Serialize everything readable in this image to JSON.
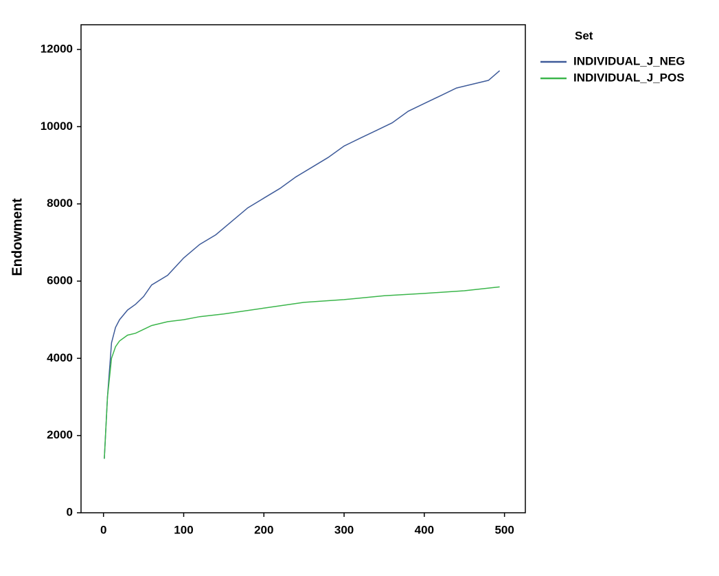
{
  "chart_data": {
    "type": "line",
    "y_label": "Endowment",
    "legend_title": "Set",
    "legend_position": "right",
    "xlim": [
      -28,
      526
    ],
    "ylim": [
      0,
      12640
    ],
    "xticks": [
      0,
      100,
      200,
      300,
      400,
      500
    ],
    "yticks": [
      0,
      2000,
      4000,
      6000,
      8000,
      10000,
      12000
    ],
    "series": [
      {
        "name": "INDIVIDUAL_J_NEG",
        "color": "#3d5a99",
        "x": [
          1,
          5,
          10,
          15,
          20,
          30,
          40,
          50,
          60,
          80,
          100,
          120,
          140,
          160,
          180,
          200,
          220,
          240,
          260,
          280,
          300,
          320,
          340,
          360,
          380,
          400,
          420,
          440,
          460,
          480,
          494
        ],
        "values": [
          1400,
          3000,
          4400,
          4800,
          5000,
          5250,
          5400,
          5600,
          5900,
          6150,
          6600,
          6950,
          7200,
          7550,
          7900,
          8150,
          8400,
          8700,
          8950,
          9200,
          9500,
          9700,
          9900,
          10100,
          10400,
          10600,
          10800,
          11000,
          11100,
          11200,
          11450
        ]
      },
      {
        "name": "INDIVIDUAL_J_POS",
        "color": "#3ab54a",
        "x": [
          1,
          5,
          10,
          15,
          20,
          30,
          40,
          50,
          60,
          80,
          100,
          120,
          150,
          200,
          250,
          300,
          350,
          400,
          450,
          494
        ],
        "values": [
          1400,
          3000,
          4000,
          4300,
          4450,
          4600,
          4650,
          4750,
          4850,
          4950,
          5000,
          5080,
          5150,
          5300,
          5450,
          5520,
          5620,
          5680,
          5750,
          5850
        ]
      }
    ]
  }
}
